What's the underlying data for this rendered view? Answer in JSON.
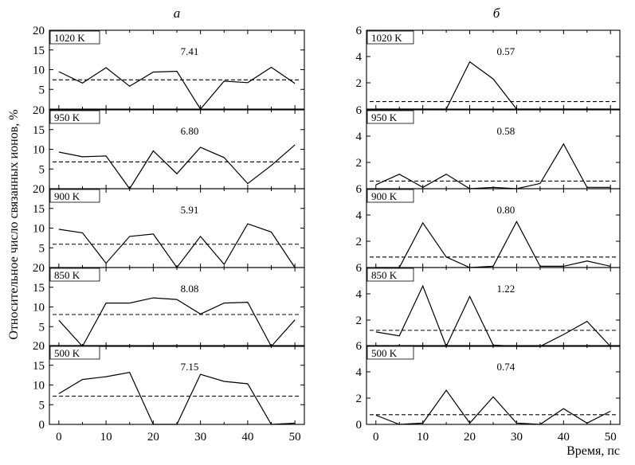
{
  "figure": {
    "ylabel": "Относительное число связанных ионов, %",
    "xlabel": "Время, пс"
  },
  "chart_data": [
    {
      "type": "line",
      "panel_label": "а",
      "x_ticks": [
        0,
        10,
        20,
        30,
        40,
        50
      ],
      "xlim": [
        -2,
        52
      ],
      "ylim": [
        0,
        20
      ],
      "y_ticks": [
        0,
        5,
        10,
        15,
        20
      ],
      "x": [
        0,
        5,
        10,
        15,
        20,
        25,
        30,
        35,
        40,
        45,
        50
      ],
      "series": [
        {
          "temperature": "1020 K",
          "mean_label": "7.41",
          "mean": 7.41,
          "values": [
            9.5,
            6.6,
            10.5,
            5.8,
            9.4,
            9.6,
            0,
            7.1,
            6.7,
            10.6,
            6.5
          ]
        },
        {
          "temperature": "950 K",
          "mean_label": "6.80",
          "mean": 6.8,
          "values": [
            9.3,
            8.1,
            8.3,
            0,
            9.6,
            3.8,
            10.5,
            7.9,
            1.3,
            5.9,
            11.1
          ]
        },
        {
          "temperature": "900 K",
          "mean_label": "5.91",
          "mean": 5.91,
          "values": [
            9.7,
            8.8,
            1.1,
            7.9,
            8.5,
            0,
            7.9,
            0.8,
            11.1,
            9.0,
            0
          ]
        },
        {
          "temperature": "850 K",
          "mean_label": "8.08",
          "mean": 8.08,
          "values": [
            6.6,
            0,
            11.0,
            11.0,
            12.3,
            11.9,
            8.2,
            11.0,
            11.2,
            0,
            6.7
          ]
        },
        {
          "temperature": "500 K",
          "mean_label": "7.15",
          "mean": 7.15,
          "values": [
            7.8,
            11.4,
            12.1,
            13.2,
            0,
            0,
            12.7,
            10.9,
            10.3,
            0,
            0.3
          ]
        }
      ]
    },
    {
      "type": "line",
      "panel_label": "б",
      "x_ticks": [
        0,
        10,
        20,
        30,
        40,
        50
      ],
      "xlim": [
        -2,
        52
      ],
      "ylim": [
        0,
        6
      ],
      "y_ticks": [
        0,
        2,
        4,
        6
      ],
      "x": [
        0,
        5,
        10,
        15,
        20,
        25,
        30,
        35,
        40,
        45,
        50
      ],
      "series": [
        {
          "temperature": "1020 K",
          "mean_label": "0.57",
          "mean": 0.57,
          "values": [
            0,
            0,
            0,
            0,
            3.6,
            2.3,
            0,
            0,
            0,
            0,
            0
          ]
        },
        {
          "temperature": "950 K",
          "mean_label": "0.58",
          "mean": 0.58,
          "values": [
            0.3,
            1.1,
            0.1,
            1.1,
            0,
            0.1,
            0,
            0.4,
            3.4,
            0.1,
            0.1
          ]
        },
        {
          "temperature": "900 K",
          "mean_label": "0.80",
          "mean": 0.8,
          "values": [
            0,
            0,
            3.4,
            0.8,
            0,
            0.1,
            3.5,
            0.1,
            0.1,
            0.5,
            0.1
          ]
        },
        {
          "temperature": "850 K",
          "mean_label": "1.22",
          "mean": 1.22,
          "values": [
            1.1,
            0.8,
            4.6,
            0,
            3.8,
            0.1,
            0,
            0,
            0.9,
            1.9,
            0
          ]
        },
        {
          "temperature": "500 K",
          "mean_label": "0.74",
          "mean": 0.74,
          "values": [
            0.7,
            0,
            0.1,
            2.6,
            0.1,
            2.1,
            0.1,
            0,
            1.2,
            0.1,
            1.0
          ]
        }
      ]
    }
  ]
}
